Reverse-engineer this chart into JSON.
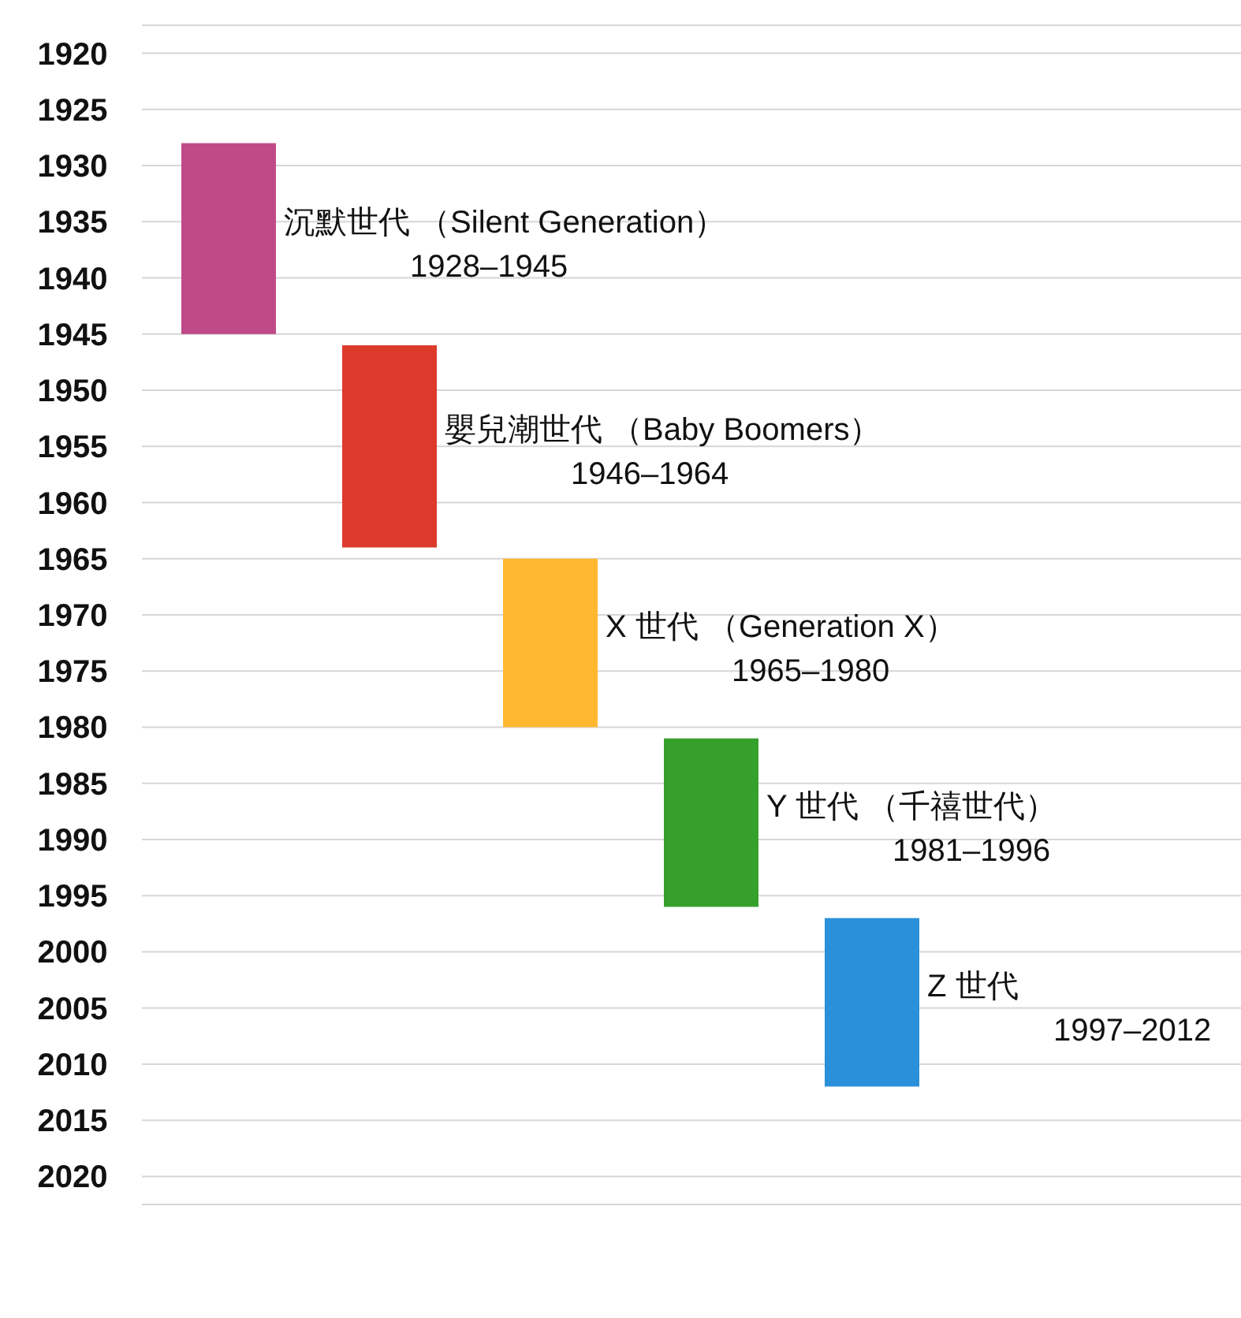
{
  "chart_data": {
    "type": "bar",
    "categories": [
      null,
      null,
      null,
      null,
      null
    ],
    "base": [
      1928,
      1946,
      1965,
      1981,
      1997
    ],
    "values": [
      17,
      18,
      15,
      15,
      15
    ],
    "colors": [
      "#c04a88",
      "#dc3b2c",
      "#feb830",
      "#36a02c",
      "#2b90da"
    ],
    "annotations": [
      "沉默世代 （Silent Generation）",
      "嬰兒潮世代 （Baby Boomers）",
      "X 世代 （Generation X）",
      "Y 世代 （千禧世代）",
      "Z 世代",
      "1928–1945",
      "1946–1964",
      "1965–1980",
      "1981–1996",
      "1997–2012"
    ],
    "ylim": [
      2022.5,
      1917.5
    ],
    "yticks": [
      1920,
      1925,
      1930,
      1935,
      1940,
      1945,
      1950,
      1955,
      1960,
      1965,
      1970,
      1975,
      1980,
      1985,
      1990,
      1995,
      2000,
      2005,
      2010,
      2015,
      2020
    ],
    "grid": "y",
    "tick_labels": "y"
  }
}
